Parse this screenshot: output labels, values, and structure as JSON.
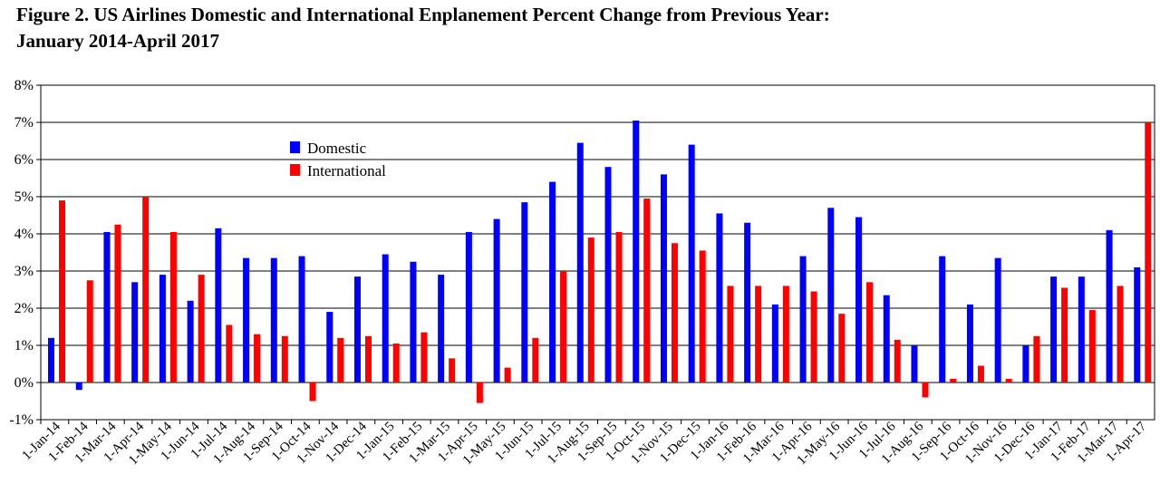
{
  "chart_data": {
    "type": "bar",
    "title_line1": "Figure 2. US Airlines Domestic and International Enplanement Percent Change from Previous Year:",
    "title_line2": "January 2014-April 2017",
    "xlabel": "",
    "ylabel": "",
    "ylim": [
      -1,
      8
    ],
    "yticks": [
      "-1%",
      "0%",
      "1%",
      "2%",
      "3%",
      "4%",
      "5%",
      "6%",
      "7%",
      "8%"
    ],
    "grid": true,
    "legend": "upper-left",
    "categories": [
      "1-Jan-14",
      "1-Feb-14",
      "1-Mar-14",
      "1-Apr-14",
      "1-May-14",
      "1-Jun-14",
      "1-Jul-14",
      "1-Aug-14",
      "1-Sep-14",
      "1-Oct-14",
      "1-Nov-14",
      "1-Dec-14",
      "1-Jan-15",
      "1-Feb-15",
      "1-Mar-15",
      "1-Apr-15",
      "1-May-15",
      "1-Jun-15",
      "1-Jul-15",
      "1-Aug-15",
      "1-Sep-15",
      "1-Oct-15",
      "1-Nov-15",
      "1-Dec-15",
      "1-Jan-16",
      "1-Feb-16",
      "1-Mar-16",
      "1-Apr-16",
      "1-May-16",
      "1-Jun-16",
      "1-Jul-16",
      "1-Aug-16",
      "1-Sep-16",
      "1-Oct-16",
      "1-Nov-16",
      "1-Dec-16",
      "1-Jan-17",
      "1-Feb-17",
      "1-Mar-17",
      "1-Apr-17"
    ],
    "series": [
      {
        "name": "Domestic",
        "color": "#0000ff",
        "values": [
          1.2,
          -0.2,
          4.05,
          2.7,
          2.9,
          2.2,
          4.15,
          3.35,
          3.35,
          3.4,
          1.9,
          2.85,
          3.45,
          3.25,
          2.9,
          4.05,
          4.4,
          4.85,
          5.4,
          6.45,
          5.8,
          7.05,
          5.6,
          6.4,
          4.55,
          4.3,
          2.1,
          3.4,
          4.7,
          4.45,
          2.35,
          1.0,
          3.4,
          2.1,
          3.35,
          1.0,
          2.85,
          2.85,
          4.1,
          3.1
        ]
      },
      {
        "name": "International",
        "color": "#ff0000",
        "values": [
          4.9,
          2.75,
          4.25,
          5.0,
          4.05,
          2.9,
          1.55,
          1.3,
          1.25,
          -0.5,
          1.2,
          1.25,
          1.05,
          1.35,
          0.65,
          -0.55,
          0.4,
          1.2,
          3.0,
          3.9,
          4.05,
          4.95,
          3.75,
          3.55,
          2.6,
          2.6,
          2.6,
          2.45,
          1.85,
          2.7,
          1.15,
          -0.4,
          0.1,
          0.45,
          0.1,
          1.25,
          2.55,
          1.95,
          2.6,
          7.0
        ]
      }
    ]
  }
}
